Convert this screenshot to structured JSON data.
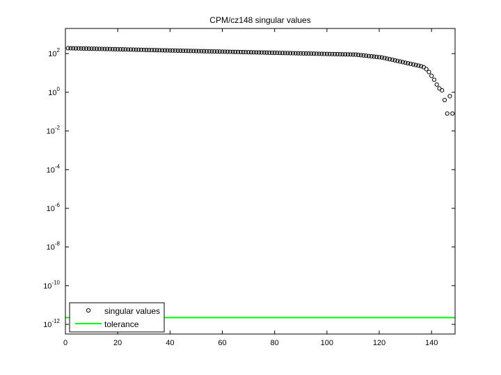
{
  "chart_data": {
    "type": "scatter",
    "title": "CPM/cz148 singular values",
    "xlabel": "",
    "ylabel": "",
    "xlim": [
      0,
      149
    ],
    "ylim_log10": [
      -12.5,
      3.3
    ],
    "y_scale": "log",
    "x_ticks": [
      0,
      20,
      40,
      60,
      80,
      100,
      120,
      140
    ],
    "y_ticks": [
      {
        "base": "10",
        "exp": "2"
      },
      {
        "base": "10",
        "exp": "0"
      },
      {
        "base": "10",
        "exp": "-2"
      },
      {
        "base": "10",
        "exp": "-4"
      },
      {
        "base": "10",
        "exp": "-6"
      },
      {
        "base": "10",
        "exp": "-8"
      },
      {
        "base": "10",
        "exp": "-10"
      },
      {
        "base": "10",
        "exp": "-12"
      }
    ],
    "legend_position": "bottom-left",
    "series": [
      {
        "name": "singular values",
        "marker": "circle",
        "color": "#000000",
        "x_start": 1,
        "x_end": 148,
        "log10_values": [
          2.28,
          2.277,
          2.274,
          2.271,
          2.268,
          2.265,
          2.262,
          2.259,
          2.256,
          2.253,
          2.25,
          2.247,
          2.244,
          2.241,
          2.238,
          2.235,
          2.232,
          2.229,
          2.226,
          2.223,
          2.22,
          2.217,
          2.214,
          2.211,
          2.208,
          2.205,
          2.202,
          2.199,
          2.196,
          2.193,
          2.19,
          2.187,
          2.184,
          2.181,
          2.178,
          2.175,
          2.172,
          2.169,
          2.166,
          2.163,
          2.16,
          2.157,
          2.154,
          2.151,
          2.148,
          2.145,
          2.142,
          2.139,
          2.136,
          2.133,
          2.13,
          2.127,
          2.124,
          2.121,
          2.118,
          2.115,
          2.112,
          2.109,
          2.106,
          2.103,
          2.1,
          2.097,
          2.094,
          2.091,
          2.088,
          2.085,
          2.082,
          2.079,
          2.076,
          2.073,
          2.07,
          2.067,
          2.064,
          2.061,
          2.058,
          2.055,
          2.052,
          2.049,
          2.046,
          2.043,
          2.04,
          2.037,
          2.034,
          2.031,
          2.028,
          2.025,
          2.022,
          2.019,
          2.016,
          2.013,
          2.01,
          2.007,
          2.004,
          2.001,
          1.998,
          1.995,
          1.992,
          1.989,
          1.986,
          1.983,
          1.98,
          1.977,
          1.974,
          1.971,
          1.968,
          1.965,
          1.962,
          1.959,
          1.956,
          1.953,
          1.95,
          1.935,
          1.92,
          1.905,
          1.89,
          1.875,
          1.86,
          1.845,
          1.83,
          1.815,
          1.8,
          1.77,
          1.74,
          1.71,
          1.68,
          1.65,
          1.62,
          1.59,
          1.56,
          1.53,
          1.5,
          1.47,
          1.44,
          1.41,
          1.38,
          1.35,
          1.3,
          1.2,
          1.05,
          0.85,
          0.65,
          0.4,
          0.2,
          0.1,
          -0.4,
          -1.1,
          -0.2,
          -1.1
        ]
      },
      {
        "name": "tolerance",
        "marker": "line",
        "color": "#00ff00",
        "x": [
          0,
          149
        ],
        "log10_values": [
          -11.65,
          -11.65
        ]
      }
    ]
  }
}
